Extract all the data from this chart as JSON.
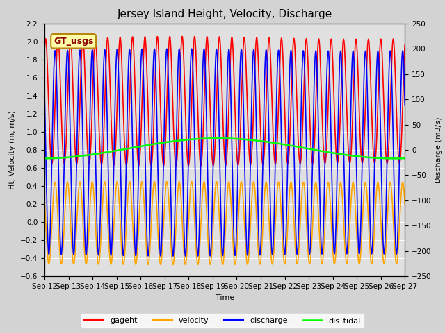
{
  "title": "Jersey Island Height, Velocity, Discharge",
  "xlabel": "Time",
  "ylabel_left": "Ht, Velocity (m, m/s)",
  "ylabel_right": "Discharge (m3/s)",
  "ylim_left": [
    -0.6,
    2.2
  ],
  "ylim_right": [
    -250,
    250
  ],
  "yticks_left": [
    -0.6,
    -0.4,
    -0.2,
    0.0,
    0.2,
    0.4,
    0.6,
    0.8,
    1.0,
    1.2,
    1.4,
    1.6,
    1.8,
    2.0,
    2.2
  ],
  "yticks_right": [
    -250,
    -200,
    -150,
    -100,
    -50,
    0,
    50,
    100,
    150,
    200,
    250
  ],
  "xticklabels": [
    "Sep 12",
    "Sep 13",
    "Sep 14",
    "Sep 15",
    "Sep 16",
    "Sep 17",
    "Sep 18",
    "Sep 19",
    "Sep 20",
    "Sep 21",
    "Sep 22",
    "Sep 23",
    "Sep 24",
    "Sep 25",
    "Sep 26",
    "Sep 27"
  ],
  "background_color": "#d3d3d3",
  "plot_bg_color": "#e0e0e0",
  "annotation_text": "GT_usgs",
  "annotation_color": "#8b0000",
  "annotation_bg": "#ffffaa",
  "annotation_border": "#b8860b",
  "line_colors": {
    "gageht": "red",
    "velocity": "orange",
    "discharge": "blue",
    "dis_tidal": "lime"
  },
  "line_widths": {
    "gageht": 1.2,
    "velocity": 1.2,
    "discharge": 1.2,
    "dis_tidal": 1.8
  },
  "title_fontsize": 11,
  "label_fontsize": 8,
  "tick_fontsize": 7.5
}
